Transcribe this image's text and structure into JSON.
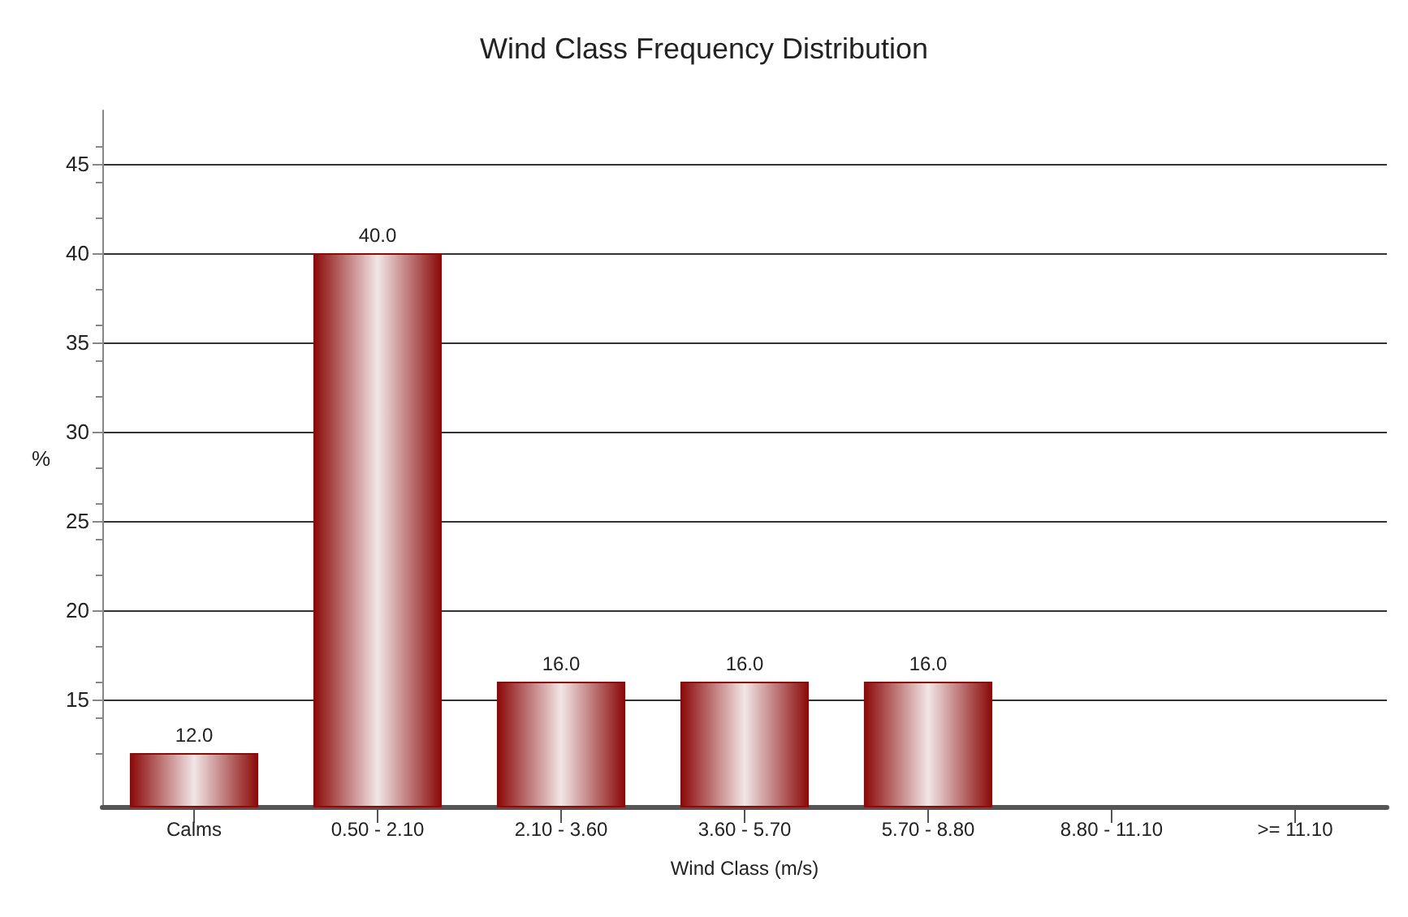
{
  "chart_data": {
    "type": "bar",
    "title": "Wind Class Frequency Distribution",
    "xlabel": "Wind Class (m/s)",
    "ylabel": "%",
    "categories": [
      "Calms",
      "0.50 - 2.10",
      "2.10 - 3.60",
      "3.60 - 5.70",
      "5.70 - 8.80",
      "8.80 - 11.10",
      ">= 11.10"
    ],
    "values": [
      12.0,
      40.0,
      16.0,
      16.0,
      16.0,
      null,
      null
    ],
    "value_labels": [
      "12.0",
      "40.0",
      "16.0",
      "16.0",
      "16.0",
      null,
      null
    ],
    "color": "#8b0a0a",
    "ylim": [
      9,
      48
    ],
    "yticks": [
      15,
      20,
      25,
      30,
      35,
      40,
      45
    ],
    "grid": "y"
  }
}
